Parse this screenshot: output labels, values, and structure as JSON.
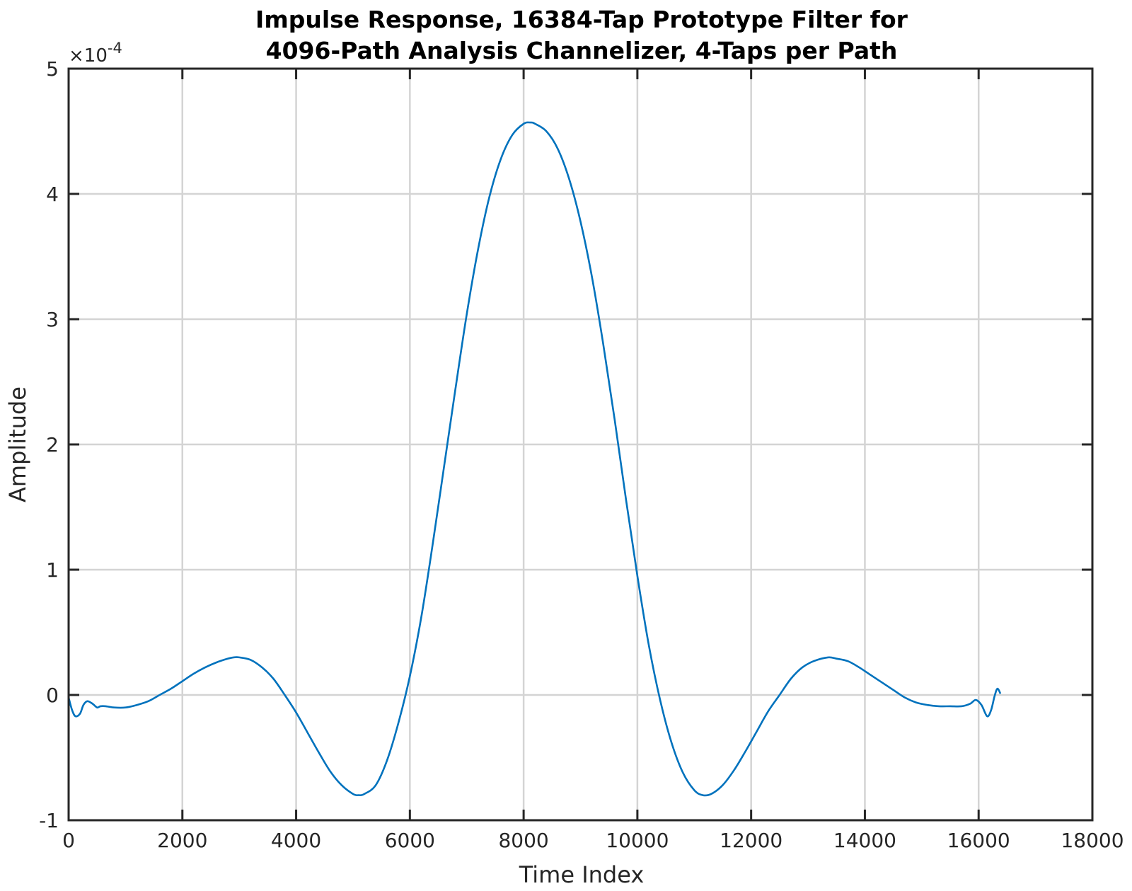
{
  "chart_data": {
    "type": "line",
    "title_line1": "Impulse Response, 16384-Tap Prototype Filter for",
    "title_line2": "4096-Path Analysis Channelizer, 4-Taps per Path",
    "xlabel": "Time Index",
    "ylabel": "Amplitude",
    "y_multiplier_prefix": "×10",
    "y_multiplier_exponent": "-4",
    "xlim": [
      0,
      18000
    ],
    "ylim": [
      -1,
      5
    ],
    "x_ticks": [
      "0",
      "2000",
      "4000",
      "6000",
      "8000",
      "10000",
      "12000",
      "14000",
      "16000",
      "18000"
    ],
    "y_ticks": [
      "-1",
      "0",
      "1",
      "2",
      "3",
      "4",
      "5"
    ],
    "grid": true,
    "line_color": "#0072BD",
    "series": [
      {
        "points": [
          [
            0,
            -0.02
          ],
          [
            60,
            -0.12
          ],
          [
            120,
            -0.17
          ],
          [
            200,
            -0.15
          ],
          [
            260,
            -0.08
          ],
          [
            330,
            -0.05
          ],
          [
            420,
            -0.07
          ],
          [
            500,
            -0.1
          ],
          [
            560,
            -0.09
          ],
          [
            650,
            -0.09
          ],
          [
            800,
            -0.1
          ],
          [
            1000,
            -0.1
          ],
          [
            1200,
            -0.08
          ],
          [
            1400,
            -0.05
          ],
          [
            1600,
            0.0
          ],
          [
            1800,
            0.05
          ],
          [
            2000,
            0.11
          ],
          [
            2200,
            0.17
          ],
          [
            2400,
            0.22
          ],
          [
            2600,
            0.26
          ],
          [
            2800,
            0.29
          ],
          [
            2900,
            0.3
          ],
          [
            3000,
            0.3
          ],
          [
            3200,
            0.28
          ],
          [
            3400,
            0.22
          ],
          [
            3600,
            0.13
          ],
          [
            3800,
            0.0
          ],
          [
            4000,
            -0.14
          ],
          [
            4200,
            -0.3
          ],
          [
            4400,
            -0.46
          ],
          [
            4600,
            -0.61
          ],
          [
            4800,
            -0.72
          ],
          [
            5000,
            -0.79
          ],
          [
            5100,
            -0.8
          ],
          [
            5200,
            -0.79
          ],
          [
            5400,
            -0.72
          ],
          [
            5600,
            -0.52
          ],
          [
            5800,
            -0.22
          ],
          [
            6000,
            0.15
          ],
          [
            6200,
            0.62
          ],
          [
            6400,
            1.2
          ],
          [
            6600,
            1.82
          ],
          [
            6800,
            2.44
          ],
          [
            7000,
            3.04
          ],
          [
            7200,
            3.56
          ],
          [
            7400,
            3.98
          ],
          [
            7600,
            4.28
          ],
          [
            7800,
            4.47
          ],
          [
            8000,
            4.56
          ],
          [
            8120,
            4.57
          ],
          [
            8200,
            4.56
          ],
          [
            8400,
            4.5
          ],
          [
            8600,
            4.36
          ],
          [
            8800,
            4.12
          ],
          [
            9000,
            3.78
          ],
          [
            9200,
            3.34
          ],
          [
            9400,
            2.8
          ],
          [
            9600,
            2.2
          ],
          [
            9800,
            1.56
          ],
          [
            10000,
            0.95
          ],
          [
            10200,
            0.4
          ],
          [
            10400,
            -0.04
          ],
          [
            10600,
            -0.38
          ],
          [
            10800,
            -0.62
          ],
          [
            11000,
            -0.76
          ],
          [
            11150,
            -0.8
          ],
          [
            11300,
            -0.79
          ],
          [
            11500,
            -0.72
          ],
          [
            11700,
            -0.6
          ],
          [
            11900,
            -0.45
          ],
          [
            12100,
            -0.29
          ],
          [
            12300,
            -0.13
          ],
          [
            12500,
            0.0
          ],
          [
            12700,
            0.13
          ],
          [
            12900,
            0.22
          ],
          [
            13100,
            0.27
          ],
          [
            13350,
            0.3
          ],
          [
            13500,
            0.29
          ],
          [
            13700,
            0.27
          ],
          [
            13900,
            0.22
          ],
          [
            14100,
            0.16
          ],
          [
            14300,
            0.1
          ],
          [
            14500,
            0.04
          ],
          [
            14700,
            -0.02
          ],
          [
            14900,
            -0.06
          ],
          [
            15100,
            -0.08
          ],
          [
            15300,
            -0.09
          ],
          [
            15500,
            -0.09
          ],
          [
            15700,
            -0.09
          ],
          [
            15850,
            -0.07
          ],
          [
            15950,
            -0.04
          ],
          [
            16050,
            -0.08
          ],
          [
            16150,
            -0.17
          ],
          [
            16220,
            -0.12
          ],
          [
            16280,
            -0.01
          ],
          [
            16330,
            0.05
          ],
          [
            16384,
            0.01
          ]
        ]
      }
    ]
  }
}
